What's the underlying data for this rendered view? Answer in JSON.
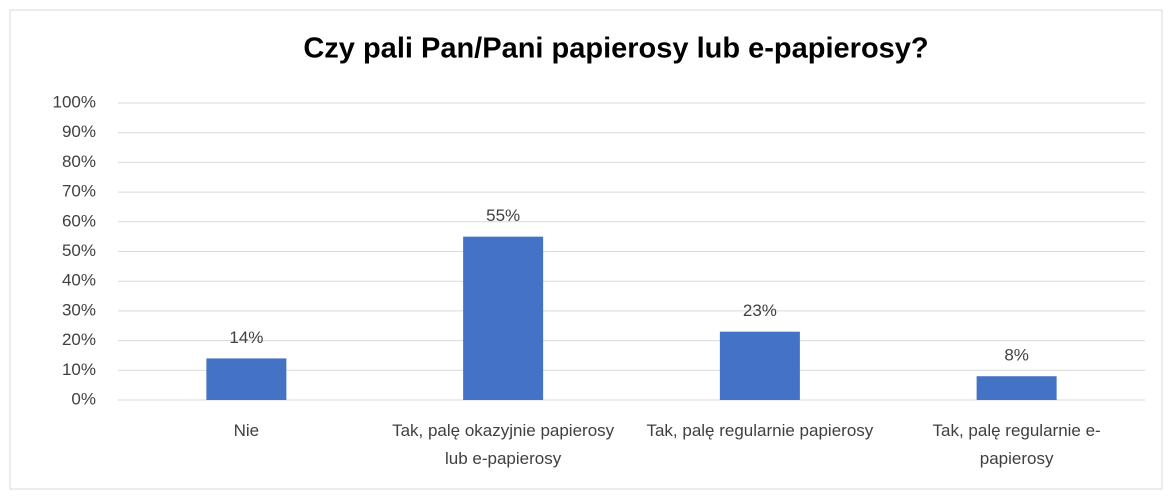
{
  "chart_data": {
    "type": "bar",
    "title": "Czy pali Pan/Pani papierosy lub e-papierosy?",
    "categories": [
      "Nie",
      "Tak, palę okazyjnie papierosy lub e-papierosy",
      "Tak, palę regularnie papierosy",
      "Tak, palę regularnie e-papierosy"
    ],
    "values": [
      14,
      55,
      23,
      8
    ],
    "value_labels": [
      "14%",
      "55%",
      "23%",
      "8%"
    ],
    "color": "#4472c4",
    "ylim": [
      0,
      100
    ],
    "yticks": [
      {
        "value": 0,
        "label": "0%"
      },
      {
        "value": 10,
        "label": "10%"
      },
      {
        "value": 20,
        "label": "20%"
      },
      {
        "value": 30,
        "label": "30%"
      },
      {
        "value": 40,
        "label": "40%"
      },
      {
        "value": 50,
        "label": "50%"
      },
      {
        "value": 60,
        "label": "60%"
      },
      {
        "value": 70,
        "label": "70%"
      },
      {
        "value": 80,
        "label": "80%"
      },
      {
        "value": 90,
        "label": "90%"
      },
      {
        "value": 100,
        "label": "100%"
      }
    ],
    "grid": true
  }
}
